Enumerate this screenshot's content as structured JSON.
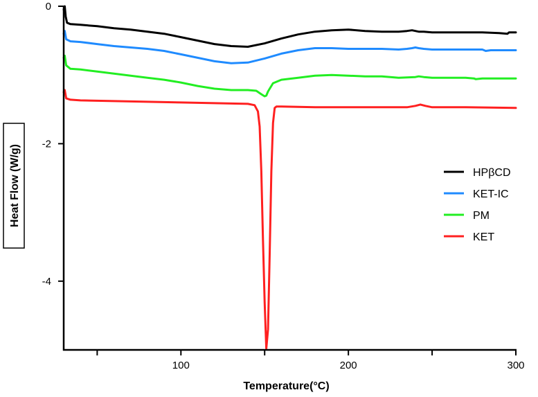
{
  "chart_data": {
    "type": "line",
    "title": "",
    "xlabel": "Temperature(°C)",
    "ylabel": "Heat Flow (W/g)",
    "xlim": [
      30,
      300
    ],
    "ylim": [
      -5,
      0
    ],
    "x_ticks": [
      50,
      100,
      150,
      200,
      250,
      300
    ],
    "x_tick_labels": [
      "",
      "100",
      "",
      "200",
      "",
      "300"
    ],
    "y_ticks": [
      0,
      -2,
      -4
    ],
    "y_tick_labels": [
      "0",
      "-2",
      "-4"
    ],
    "legend_position": "right",
    "series": [
      {
        "name": "HPβCD",
        "color": "#000000",
        "x": [
          30,
          30.6,
          31.2,
          32,
          34,
          40,
          50,
          60,
          70,
          80,
          90,
          100,
          110,
          120,
          130,
          140,
          150,
          160,
          170,
          180,
          190,
          200,
          210,
          220,
          230,
          235,
          238,
          240,
          242,
          245,
          250,
          260,
          270,
          280,
          290,
          295,
          296,
          300
        ],
        "y": [
          -0.05,
          0.0,
          -0.15,
          -0.24,
          -0.26,
          -0.27,
          -0.29,
          -0.32,
          -0.34,
          -0.37,
          -0.4,
          -0.45,
          -0.5,
          -0.55,
          -0.58,
          -0.59,
          -0.54,
          -0.47,
          -0.41,
          -0.37,
          -0.35,
          -0.34,
          -0.36,
          -0.37,
          -0.37,
          -0.36,
          -0.35,
          -0.36,
          -0.37,
          -0.37,
          -0.38,
          -0.38,
          -0.38,
          -0.38,
          -0.39,
          -0.4,
          -0.38,
          -0.38
        ]
      },
      {
        "name": "KET-IC",
        "color": "#1f8bff",
        "x": [
          30,
          30.6,
          31.5,
          34,
          40,
          50,
          60,
          70,
          80,
          90,
          100,
          110,
          120,
          130,
          140,
          150,
          160,
          170,
          180,
          190,
          200,
          210,
          220,
          230,
          235,
          238,
          240,
          242,
          245,
          250,
          260,
          270,
          280,
          282,
          285,
          290,
          300
        ],
        "y": [
          -0.4,
          -0.36,
          -0.48,
          -0.51,
          -0.52,
          -0.55,
          -0.58,
          -0.6,
          -0.62,
          -0.65,
          -0.7,
          -0.75,
          -0.8,
          -0.83,
          -0.82,
          -0.76,
          -0.69,
          -0.64,
          -0.61,
          -0.61,
          -0.62,
          -0.62,
          -0.62,
          -0.63,
          -0.62,
          -0.61,
          -0.6,
          -0.61,
          -0.62,
          -0.63,
          -0.63,
          -0.63,
          -0.63,
          -0.65,
          -0.64,
          -0.64,
          -0.64
        ]
      },
      {
        "name": "PM",
        "color": "#22ee22",
        "x": [
          30,
          30.6,
          31.5,
          34,
          40,
          50,
          60,
          70,
          80,
          90,
          100,
          110,
          120,
          130,
          140,
          145,
          148,
          150,
          151,
          152,
          155,
          160,
          170,
          180,
          190,
          200,
          210,
          220,
          230,
          240,
          242,
          245,
          250,
          260,
          270,
          275,
          276,
          280,
          290,
          300
        ],
        "y": [
          -0.75,
          -0.72,
          -0.86,
          -0.91,
          -0.92,
          -0.95,
          -0.98,
          -1.01,
          -1.04,
          -1.07,
          -1.11,
          -1.16,
          -1.2,
          -1.22,
          -1.22,
          -1.23,
          -1.28,
          -1.31,
          -1.3,
          -1.24,
          -1.12,
          -1.07,
          -1.04,
          -1.01,
          -1.0,
          -1.01,
          -1.02,
          -1.02,
          -1.04,
          -1.03,
          -1.02,
          -1.03,
          -1.04,
          -1.04,
          -1.04,
          -1.05,
          -1.06,
          -1.05,
          -1.05,
          -1.05
        ]
      },
      {
        "name": "KET",
        "color": "#ff2020",
        "x": [
          30,
          30.6,
          31.5,
          34,
          40,
          60,
          80,
          100,
          120,
          140,
          144,
          146,
          147,
          148,
          149,
          150,
          151,
          152,
          153,
          154,
          155,
          156,
          157,
          160,
          180,
          200,
          220,
          235,
          240,
          243,
          246,
          250,
          270,
          300
        ],
        "y": [
          -1.25,
          -1.22,
          -1.34,
          -1.36,
          -1.37,
          -1.38,
          -1.39,
          -1.4,
          -1.41,
          -1.42,
          -1.44,
          -1.53,
          -1.75,
          -2.4,
          -3.4,
          -4.3,
          -4.98,
          -4.7,
          -3.6,
          -2.4,
          -1.7,
          -1.48,
          -1.46,
          -1.46,
          -1.47,
          -1.47,
          -1.47,
          -1.47,
          -1.45,
          -1.43,
          -1.45,
          -1.47,
          -1.47,
          -1.48
        ]
      }
    ]
  }
}
